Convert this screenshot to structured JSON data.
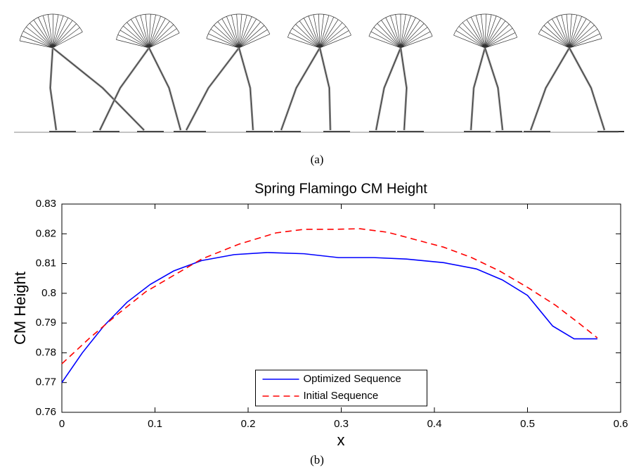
{
  "captions": [
    "(a)",
    "(b)"
  ],
  "chart_data": {
    "type": "line",
    "title": "Spring Flamingo CM Height",
    "x_label": "x",
    "y_label": "CM Height",
    "xlim": [
      0,
      0.6
    ],
    "xticks": [
      0,
      0.1,
      0.2,
      0.3,
      0.4,
      0.5,
      0.6
    ],
    "ylim": [
      0.76,
      0.83
    ],
    "yticks": [
      0.76,
      0.77,
      0.78,
      0.79,
      0.8,
      0.81,
      0.82,
      0.83
    ],
    "grid": false,
    "legend": "lower center",
    "series": [
      {
        "name": "Optimized Sequence",
        "color": "#0000ff",
        "dash": "solid",
        "x": [
          0,
          0.022,
          0.045,
          0.07,
          0.095,
          0.12,
          0.15,
          0.185,
          0.22,
          0.26,
          0.297,
          0.335,
          0.37,
          0.41,
          0.445,
          0.473,
          0.5,
          0.527,
          0.55,
          0.575
        ],
        "values": [
          0.77,
          0.78,
          0.789,
          0.797,
          0.803,
          0.8075,
          0.811,
          0.813,
          0.8137,
          0.8133,
          0.812,
          0.812,
          0.8115,
          0.8103,
          0.8082,
          0.8045,
          0.7993,
          0.789,
          0.7847,
          0.7847
        ]
      },
      {
        "name": "Initial Sequence",
        "color": "#ff0000",
        "dash": "dashed",
        "x": [
          0,
          0.03,
          0.06,
          0.09,
          0.12,
          0.15,
          0.19,
          0.23,
          0.26,
          0.29,
          0.32,
          0.35,
          0.38,
          0.41,
          0.44,
          0.47,
          0.5,
          0.53,
          0.555,
          0.575
        ],
        "values": [
          0.7763,
          0.785,
          0.793,
          0.8005,
          0.806,
          0.8115,
          0.8165,
          0.8203,
          0.8215,
          0.8215,
          0.8217,
          0.8205,
          0.818,
          0.8155,
          0.812,
          0.8075,
          0.802,
          0.796,
          0.79,
          0.785
        ]
      }
    ]
  }
}
